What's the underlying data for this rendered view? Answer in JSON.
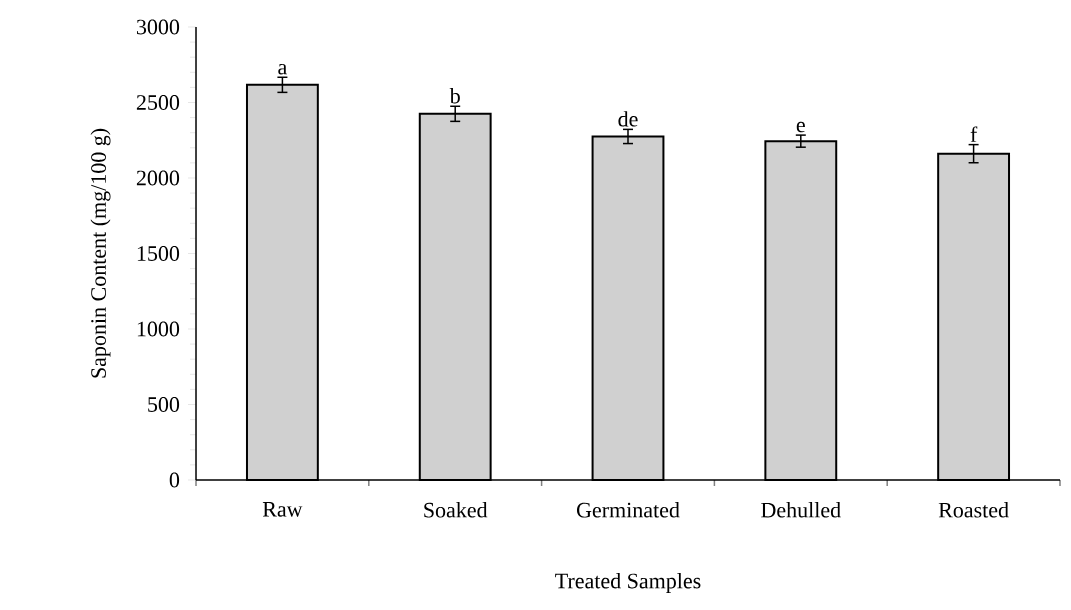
{
  "chart_data": {
    "type": "bar",
    "xlabel": "Treated Samples",
    "ylabel": "Saponin Content (mg/100 g)",
    "categories": [
      "Raw",
      "Soaked",
      "Germinated",
      "Dehulled",
      "Roasted"
    ],
    "values": [
      2617,
      2425,
      2275,
      2244,
      2161
    ],
    "errors": [
      50,
      50,
      47,
      40,
      60
    ],
    "color": "#d0d0d0",
    "ylim": [
      0,
      3000
    ],
    "yticks": [
      0,
      500,
      1000,
      1500,
      2000,
      2500,
      3000
    ],
    "annotations": [
      {
        "text": "a",
        "x": "Raw",
        "y": 2667
      },
      {
        "text": "b",
        "x": "Soaked",
        "y": 2475
      },
      {
        "text": "de",
        "x": "Germinated",
        "y": 2322
      },
      {
        "text": "e",
        "x": "Dehulled",
        "y": 2284
      },
      {
        "text": "f",
        "x": "Roasted",
        "y": 2221
      }
    ]
  }
}
